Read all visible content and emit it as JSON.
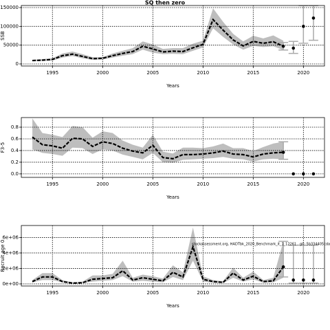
{
  "chart_data": [
    {
      "type": "line",
      "title": "SQ then zero",
      "xlabel": "Years",
      "ylabel": "SSB",
      "x": [
        1993,
        1994,
        1995,
        1996,
        1997,
        1998,
        1999,
        2000,
        2001,
        2002,
        2003,
        2004,
        2005,
        2006,
        2007,
        2008,
        2009,
        2010,
        2011,
        2012,
        2013,
        2014,
        2015,
        2016,
        2017,
        2018
      ],
      "values": [
        9000,
        10000,
        12000,
        22000,
        26000,
        20000,
        14000,
        15000,
        22000,
        28000,
        33000,
        47000,
        40000,
        32000,
        34000,
        33000,
        43000,
        52000,
        118000,
        90000,
        64000,
        48000,
        60000,
        55000,
        59000,
        47000
      ],
      "upper": [
        11000,
        13000,
        15000,
        28000,
        33000,
        26000,
        18000,
        18000,
        28000,
        35000,
        42000,
        60000,
        52000,
        40000,
        42000,
        42000,
        54000,
        62000,
        148000,
        112000,
        80000,
        60000,
        75000,
        68000,
        76000,
        62000
      ],
      "lower": [
        7000,
        8000,
        9000,
        17000,
        21000,
        15000,
        11000,
        12000,
        17000,
        22000,
        26000,
        38000,
        30000,
        26000,
        27000,
        26000,
        35000,
        44000,
        95000,
        72000,
        52000,
        38000,
        48000,
        45000,
        47000,
        37000
      ],
      "projection": {
        "x": [
          2018,
          2019,
          2020,
          2021
        ],
        "values": [
          47000,
          42000,
          100000,
          122000
        ],
        "low": [
          37000,
          28000,
          55000,
          63000
        ],
        "high": [
          57000,
          60000,
          155000,
          155000
        ]
      },
      "xlim": [
        1991.9,
        2022.1
      ],
      "xticks": [
        1995,
        2000,
        2005,
        2010,
        2015,
        2020
      ],
      "ylim": [
        -5500,
        155500
      ],
      "yticks": [
        0,
        50000,
        100000,
        150000
      ],
      "grid": true,
      "color": "#000000",
      "band_color": "#bebebe",
      "bar_color": "#aaaaaa"
    },
    {
      "type": "line",
      "xlabel": "Years",
      "ylabel": "F3-5",
      "x": [
        1993,
        1994,
        1995,
        1996,
        1997,
        1998,
        1999,
        2000,
        2001,
        2002,
        2003,
        2004,
        2005,
        2006,
        2007,
        2008,
        2009,
        2010,
        2011,
        2012,
        2013,
        2014,
        2015,
        2016,
        2017,
        2018
      ],
      "values": [
        0.63,
        0.5,
        0.48,
        0.44,
        0.61,
        0.6,
        0.47,
        0.55,
        0.52,
        0.44,
        0.39,
        0.36,
        0.49,
        0.28,
        0.26,
        0.33,
        0.33,
        0.34,
        0.36,
        0.39,
        0.34,
        0.33,
        0.29,
        0.34,
        0.36,
        0.37
      ],
      "upper": [
        0.95,
        0.7,
        0.67,
        0.63,
        0.82,
        0.8,
        0.62,
        0.73,
        0.7,
        0.57,
        0.5,
        0.45,
        0.67,
        0.38,
        0.35,
        0.45,
        0.45,
        0.44,
        0.47,
        0.52,
        0.44,
        0.44,
        0.39,
        0.46,
        0.52,
        0.55
      ],
      "lower": [
        0.42,
        0.36,
        0.34,
        0.31,
        0.45,
        0.44,
        0.34,
        0.42,
        0.4,
        0.33,
        0.29,
        0.25,
        0.36,
        0.2,
        0.19,
        0.24,
        0.25,
        0.26,
        0.27,
        0.29,
        0.26,
        0.25,
        0.21,
        0.25,
        0.26,
        0.25
      ],
      "projection": {
        "x": [
          2018,
          2019,
          2020,
          2021
        ],
        "values": [
          0.37,
          0,
          0,
          0
        ],
        "low": [
          0.25,
          null,
          null,
          null
        ],
        "high": [
          0.55,
          null,
          null,
          null
        ]
      },
      "xlim": [
        1991.9,
        2022.1
      ],
      "xticks": [
        1995,
        2000,
        2005,
        2010,
        2015,
        2020
      ],
      "ylim": [
        -0.06,
        0.965
      ],
      "yticks": [
        {
          "value": 0,
          "label": "0.0"
        },
        0.2,
        0.4,
        0.6,
        0.8
      ],
      "grid": true,
      "color": "#000000",
      "band_color": "#bebebe",
      "bar_color": "#aaaaaa"
    },
    {
      "type": "line",
      "xlabel": "Years",
      "ylabel": "Recruit age 0",
      "annotation": "stockassessment.org, HADTbk_2020_Benchmark_it_1_12261 , git: 5b334405cda",
      "x": [
        1993,
        1994,
        1995,
        1996,
        1997,
        1998,
        1999,
        2000,
        2001,
        2002,
        2003,
        2004,
        2005,
        2006,
        2007,
        2008,
        2009,
        2010,
        2011,
        2012,
        2013,
        2014,
        2015,
        2016,
        2017,
        2018
      ],
      "values": [
        300000,
        900000,
        900000,
        300000,
        100000,
        150000,
        600000,
        700000,
        800000,
        1700000,
        500000,
        800000,
        600000,
        400000,
        1500000,
        900000,
        4800000,
        600000,
        300000,
        200000,
        1400000,
        500000,
        1000000,
        300000,
        400000,
        2200000
      ],
      "upper": [
        500000,
        1400000,
        1400000,
        500000,
        200000,
        300000,
        1100000,
        1100000,
        1300000,
        3000000,
        800000,
        1200000,
        1000000,
        700000,
        2400000,
        1500000,
        7300000,
        1000000,
        500000,
        350000,
        2100000,
        800000,
        1600000,
        500000,
        800000,
        5500000
      ],
      "lower": [
        200000,
        500000,
        500000,
        200000,
        50000,
        100000,
        300000,
        400000,
        500000,
        1000000,
        300000,
        400000,
        300000,
        200000,
        900000,
        500000,
        3000000,
        300000,
        150000,
        100000,
        800000,
        300000,
        600000,
        150000,
        200000,
        800000
      ],
      "projection": {
        "x": [
          2018,
          2019,
          2020,
          2021
        ],
        "values": [
          2200000,
          500000,
          500000,
          500000
        ],
        "low": [
          900000,
          100000,
          100000,
          100000
        ],
        "high": [
          5500000,
          5000000,
          5000000,
          5000000
        ]
      },
      "xlim": [
        1991.9,
        2022.1
      ],
      "xticks": [
        1995,
        2000,
        2005,
        2010,
        2015,
        2020
      ],
      "ylim": [
        -270000,
        7550000
      ],
      "yticks": [
        {
          "value": 0,
          "label": "0e+00"
        },
        {
          "value": 2000000,
          "label": "2e+06"
        },
        {
          "value": 4000000,
          "label": "4e+06"
        },
        {
          "value": 6000000,
          "label": "6e+06"
        }
      ],
      "grid": true,
      "color": "#000000",
      "band_color": "#bebebe",
      "bar_color": "#aaaaaa"
    }
  ]
}
